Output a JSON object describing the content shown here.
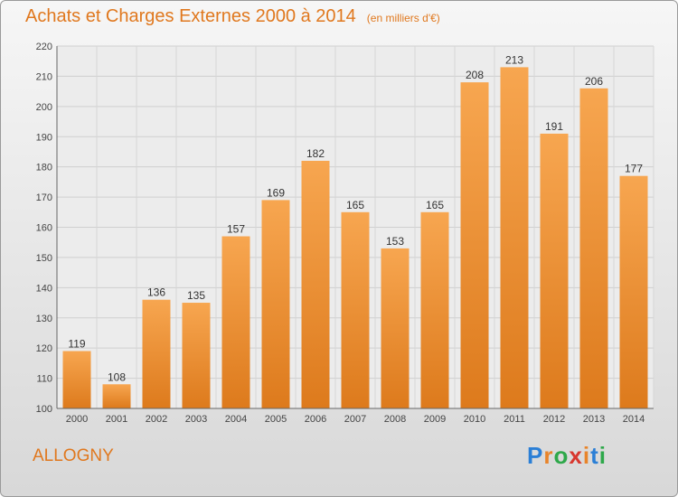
{
  "header": {
    "title": "Achats et Charges Externes 2000 à 2014",
    "subtitle": "(en milliers d'€)"
  },
  "commune": "ALLOGNY",
  "logo": {
    "text": "Proxiti",
    "colors": [
      "#2b7fd6",
      "#e8842a",
      "#2ea84a",
      "#d8372e",
      "#e8842a",
      "#2b7fd6",
      "#2ea84a"
    ]
  },
  "colors": {
    "bar_top": "#f7a650",
    "bar_bottom": "#dd7a1c",
    "accent": "#e0781e"
  },
  "chart_data": {
    "type": "bar",
    "categories": [
      "2000",
      "2001",
      "2002",
      "2003",
      "2004",
      "2005",
      "2006",
      "2007",
      "2008",
      "2009",
      "2010",
      "2011",
      "2012",
      "2013",
      "2014"
    ],
    "values": [
      119,
      108,
      136,
      135,
      157,
      169,
      182,
      165,
      153,
      165,
      208,
      213,
      191,
      206,
      177
    ],
    "ylim": [
      100,
      220
    ],
    "yticks": [
      100,
      110,
      120,
      130,
      140,
      150,
      160,
      170,
      180,
      190,
      200,
      210,
      220
    ],
    "grid": true,
    "data_labels": true
  }
}
